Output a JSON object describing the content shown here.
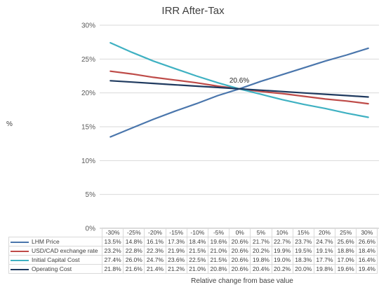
{
  "chart_data": {
    "type": "line",
    "title": "IRR After-Tax",
    "xlabel": "Relative change from base value",
    "ylabel": "%",
    "ylim": [
      0,
      30
    ],
    "yticks": [
      "0%",
      "5%",
      "10%",
      "15%",
      "20%",
      "25%",
      "30%"
    ],
    "grid": "horizontal",
    "categories": [
      "-30%",
      "-25%",
      "-20%",
      "-15%",
      "-10%",
      "-5%",
      "0%",
      "5%",
      "10%",
      "15%",
      "20%",
      "25%",
      "30%"
    ],
    "annotation": {
      "category": "0%",
      "value": 20.6,
      "text": "20.6%"
    },
    "series": [
      {
        "name": "LHM Price",
        "color": "#4a76ac",
        "values": [
          13.5,
          14.8,
          16.1,
          17.3,
          18.4,
          19.6,
          20.6,
          21.7,
          22.7,
          23.7,
          24.7,
          25.6,
          26.6
        ],
        "labels": [
          "13.5%",
          "14.8%",
          "16.1%",
          "17.3%",
          "18.4%",
          "19.6%",
          "20.6%",
          "21.7%",
          "22.7%",
          "23.7%",
          "24.7%",
          "25.6%",
          "26.6%"
        ]
      },
      {
        "name": "USD/CAD exchange rate",
        "color": "#be4b48",
        "values": [
          23.2,
          22.8,
          22.3,
          21.9,
          21.5,
          21.0,
          20.6,
          20.2,
          19.9,
          19.5,
          19.1,
          18.8,
          18.4
        ],
        "labels": [
          "23.2%",
          "22.8%",
          "22.3%",
          "21.9%",
          "21.5%",
          "21.0%",
          "20.6%",
          "20.2%",
          "19.9%",
          "19.5%",
          "19.1%",
          "18.8%",
          "18.4%"
        ]
      },
      {
        "name": "Initial Capital Cost",
        "color": "#3fb1c2",
        "values": [
          27.4,
          26.0,
          24.7,
          23.6,
          22.5,
          21.5,
          20.6,
          19.8,
          19.0,
          18.3,
          17.7,
          17.0,
          16.4
        ],
        "labels": [
          "27.4%",
          "26.0%",
          "24.7%",
          "23.6%",
          "22.5%",
          "21.5%",
          "20.6%",
          "19.8%",
          "19.0%",
          "18.3%",
          "17.7%",
          "17.0%",
          "16.4%"
        ]
      },
      {
        "name": "Operating Cost",
        "color": "#1f3a5f",
        "values": [
          21.8,
          21.6,
          21.4,
          21.2,
          21.0,
          20.8,
          20.6,
          20.4,
          20.2,
          20.0,
          19.8,
          19.6,
          19.4
        ],
        "labels": [
          "21.8%",
          "21.6%",
          "21.4%",
          "21.2%",
          "21.0%",
          "20.8%",
          "20.6%",
          "20.4%",
          "20.2%",
          "20.0%",
          "19.8%",
          "19.6%",
          "19.4%"
        ]
      }
    ]
  }
}
